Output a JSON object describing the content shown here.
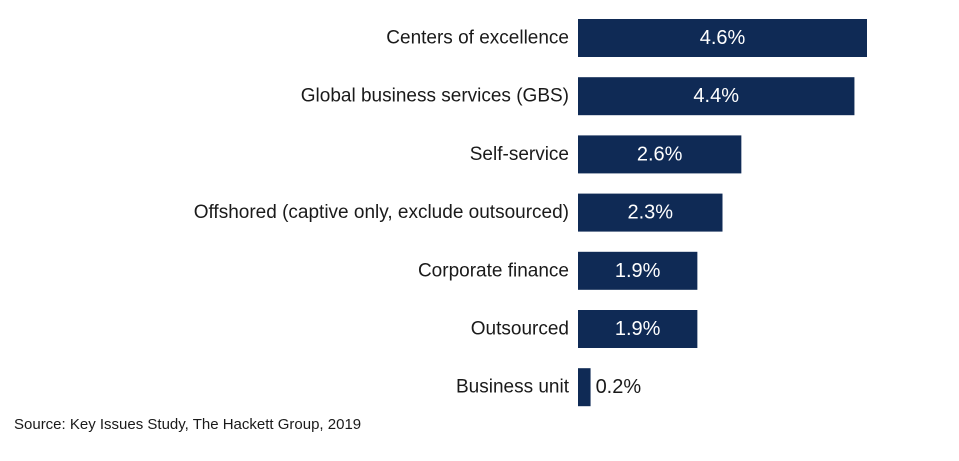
{
  "chart_data": {
    "type": "bar",
    "orientation": "horizontal",
    "categories": [
      "Centers of excellence",
      "Global business services (GBS)",
      "Self-service",
      "Offshored (captive only, exclude outsourced)",
      "Corporate finance",
      "Outsourced",
      "Business unit"
    ],
    "values": [
      4.6,
      4.4,
      2.6,
      2.3,
      1.9,
      1.9,
      0.2
    ],
    "value_labels": [
      "4.6%",
      "4.4%",
      "2.6%",
      "2.3%",
      "1.9%",
      "1.9%",
      "0.2%"
    ],
    "title": "",
    "xlabel": "",
    "ylabel": "",
    "xlim": [
      0,
      4.6
    ],
    "grid": false,
    "legend": "none"
  },
  "colors": {
    "bar": "#0f2a55",
    "label_inside": "#ffffff",
    "label_outside": "#1a1a1a"
  },
  "footer": {
    "source": "Source: Key Issues Study, The Hackett Group, 2019"
  }
}
